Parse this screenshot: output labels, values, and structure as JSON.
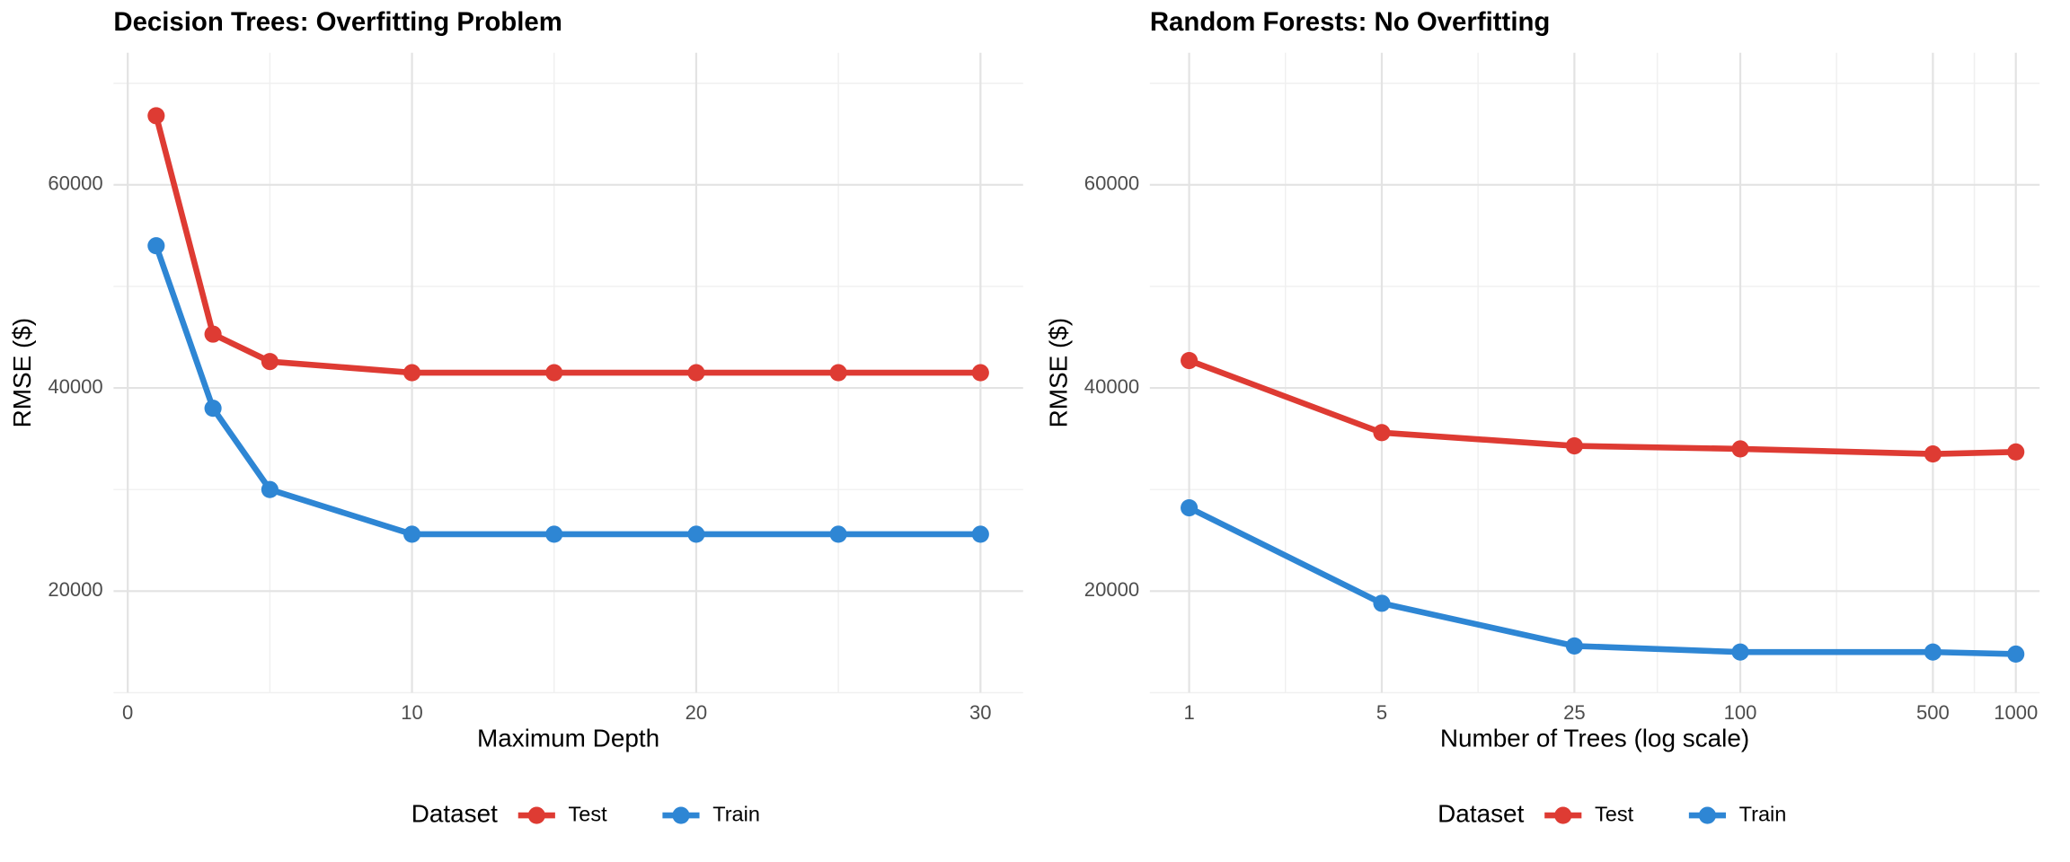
{
  "chart_data": [
    {
      "type": "line",
      "title": "Decision Trees: Overfitting Problem",
      "x_label": "Maximum Depth",
      "y_label": "RMSE ($)",
      "x": [
        1,
        3,
        5,
        10,
        15,
        20,
        25,
        30
      ],
      "series": [
        {
          "name": "Test",
          "color": "#de3b33",
          "values": [
            66800,
            45300,
            42600,
            41500,
            41500,
            41500,
            41500,
            41500
          ]
        },
        {
          "name": "Train",
          "color": "#2e86d4",
          "values": [
            54000,
            38000,
            30000,
            25600,
            25600,
            25600,
            25600,
            25600
          ]
        }
      ],
      "xlim": [
        -0.5,
        31.5
      ],
      "ylim": [
        10000,
        73000
      ],
      "xticks": [
        0,
        10,
        20,
        30
      ],
      "yticks": [
        20000,
        40000,
        60000
      ],
      "log_x": false,
      "grid": true,
      "legend_title": "Dataset",
      "legend_position": "bottom"
    },
    {
      "type": "line",
      "title": "Random Forests: No Overfitting",
      "x_label": "Number of Trees (log scale)",
      "y_label": "RMSE ($)",
      "x": [
        1,
        5,
        25,
        100,
        500,
        1000
      ],
      "series": [
        {
          "name": "Test",
          "color": "#de3b33",
          "values": [
            42700,
            35600,
            34300,
            34000,
            33500,
            33700
          ]
        },
        {
          "name": "Train",
          "color": "#2e86d4",
          "values": [
            28200,
            18800,
            14600,
            14000,
            14000,
            13800
          ]
        }
      ],
      "xlim": [
        0.72,
        1220
      ],
      "ylim": [
        10000,
        73000
      ],
      "xticks": [
        1,
        5,
        25,
        100,
        500,
        1000
      ],
      "yticks": [
        20000,
        40000,
        60000
      ],
      "log_x": true,
      "grid": true,
      "legend_title": "Dataset",
      "legend_position": "bottom"
    }
  ]
}
